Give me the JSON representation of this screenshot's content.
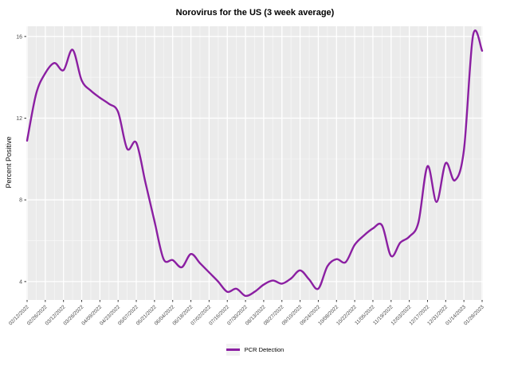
{
  "colors": {
    "line": "#8b1fa2",
    "panel_bg": "#ebebeb",
    "grid_major": "#ffffff",
    "grid_minor": "#f6f6f6",
    "axis_text": "#4d4d4d",
    "tick": "#333333",
    "title_text": "#000000"
  },
  "chart_data": {
    "type": "line",
    "title": "Norovirus for the US (3 week average)",
    "xlabel": "",
    "ylabel": "Percent Positive",
    "x": [
      "02/12/2022",
      "02/19/2022",
      "02/26/2022",
      "03/05/2022",
      "03/12/2022",
      "03/19/2022",
      "03/26/2022",
      "04/02/2022",
      "04/09/2022",
      "04/16/2022",
      "04/23/2022",
      "04/30/2022",
      "05/07/2022",
      "05/14/2022",
      "05/21/2022",
      "05/28/2022",
      "06/04/2022",
      "06/11/2022",
      "06/18/2022",
      "06/25/2022",
      "07/02/2022",
      "07/09/2022",
      "07/16/2022",
      "07/23/2022",
      "07/30/2022",
      "08/06/2022",
      "08/13/2022",
      "08/20/2022",
      "08/27/2022",
      "09/03/2022",
      "09/10/2022",
      "09/17/2022",
      "09/24/2022",
      "10/01/2022",
      "10/08/2022",
      "10/15/2022",
      "10/22/2022",
      "10/29/2022",
      "11/05/2022",
      "11/12/2022",
      "11/19/2022",
      "11/26/2022",
      "12/03/2022",
      "12/10/2022",
      "12/17/2022",
      "12/24/2022",
      "12/31/2022",
      "01/07/2023",
      "01/14/2023",
      "01/21/2023",
      "01/28/2023"
    ],
    "series": [
      {
        "name": "PCR Detection",
        "values": [
          10.9,
          13.2,
          14.2,
          14.7,
          14.35,
          15.35,
          13.85,
          13.35,
          13.0,
          12.7,
          12.3,
          10.5,
          10.8,
          8.85,
          6.95,
          5.1,
          5.05,
          4.7,
          5.35,
          4.9,
          4.45,
          4.0,
          3.5,
          3.65,
          3.3,
          3.5,
          3.85,
          4.05,
          3.9,
          4.15,
          4.55,
          4.1,
          3.65,
          4.75,
          5.1,
          4.95,
          5.8,
          6.25,
          6.6,
          6.75,
          5.25,
          5.9,
          6.2,
          6.9,
          9.65,
          7.9,
          9.8,
          8.95,
          10.45,
          16.05,
          15.3
        ]
      }
    ],
    "ylim": [
      3.1,
      16.5
    ],
    "y_ticks": [
      4,
      8,
      12,
      16
    ],
    "y_minor": [
      6,
      10,
      14
    ],
    "x_tick_every": 2,
    "grid": true,
    "legend_position": "bottom"
  }
}
